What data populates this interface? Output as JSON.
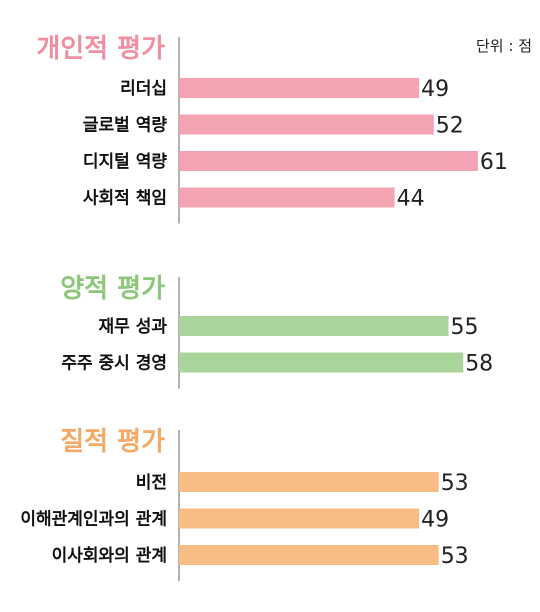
{
  "unit": "단위 : 점",
  "chart_data": [
    {
      "type": "bar",
      "title": "개인적 평가",
      "color": "#f4a3b2",
      "title_color": "#f08fa0",
      "categories": [
        "리더십",
        "글로벌 역량",
        "디지털 역량",
        "사회적 책임"
      ],
      "values": [
        49,
        52,
        61,
        44
      ]
    },
    {
      "type": "bar",
      "title": "양적 평가",
      "color": "#a9d59a",
      "title_color": "#8cc77a",
      "categories": [
        "재무 성과",
        "주주 중시 경영"
      ],
      "values": [
        55,
        58
      ]
    },
    {
      "type": "bar",
      "title": "질적 평가",
      "color": "#f7bd84",
      "title_color": "#f5a965",
      "categories": [
        "비전",
        "이해관계인과의 관계",
        "이사회와의 관계"
      ],
      "values": [
        53,
        49,
        53
      ]
    }
  ]
}
